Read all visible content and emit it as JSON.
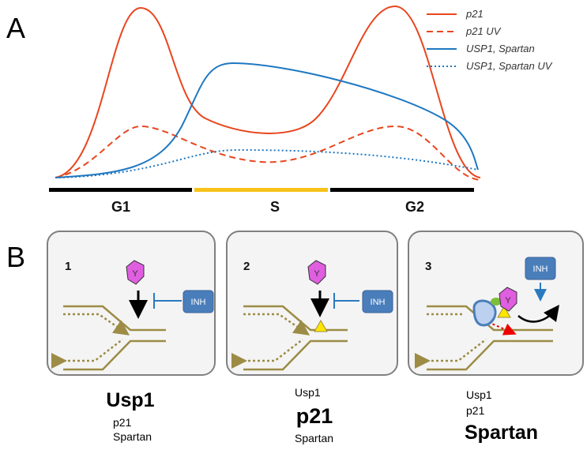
{
  "panel_a": {
    "label": "A",
    "legend": [
      "p21",
      "p21 UV",
      "USP1, Spartan",
      "USP1, Spartan UV"
    ],
    "phases": [
      "G1",
      "S",
      "G2"
    ]
  },
  "panel_b": {
    "label": "B",
    "boxes": [
      {
        "number": "1",
        "inhibitor": "INH",
        "protein_symbol": "Y",
        "labels": [
          "Usp1",
          "p21",
          "Spartan"
        ]
      },
      {
        "number": "2",
        "inhibitor": "INH",
        "protein_symbol": "Y",
        "labels": [
          "Usp1",
          "p21",
          "Spartan"
        ]
      },
      {
        "number": "3",
        "inhibitor": "INH",
        "protein_symbol": "Y",
        "labels": [
          "Usp1",
          "p21",
          "Spartan"
        ]
      }
    ]
  }
}
